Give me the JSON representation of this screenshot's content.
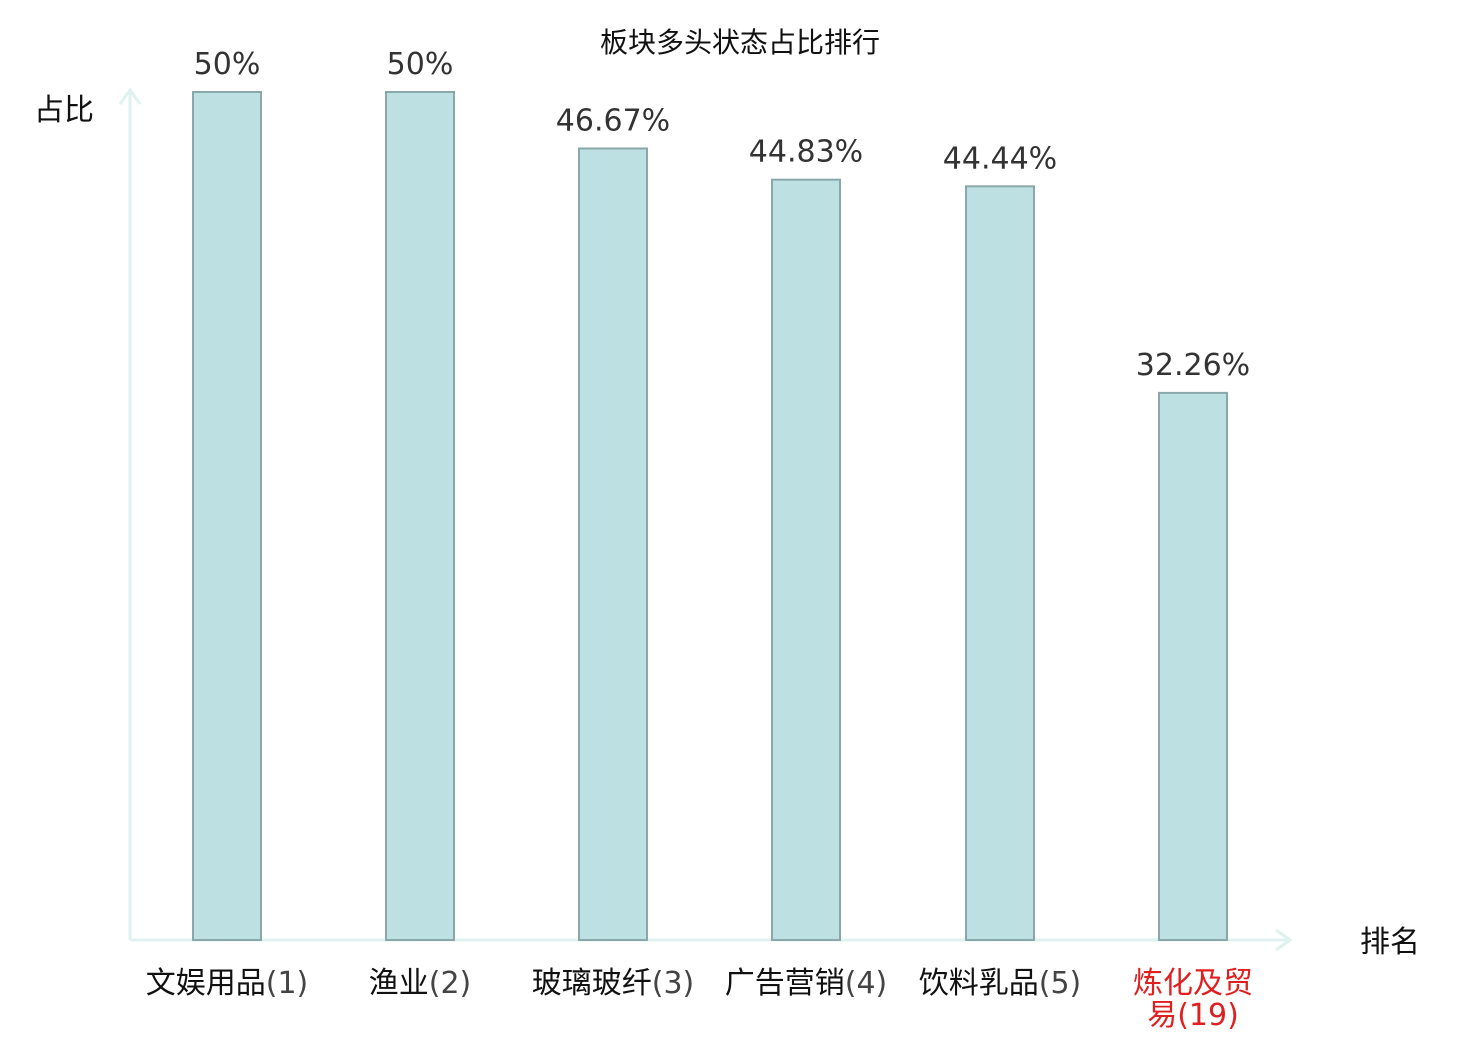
{
  "chart_data": {
    "type": "bar",
    "title": "板块多头状态占比排行",
    "ylabel": "占比",
    "xlabel": "排名",
    "categories": [
      {
        "name": "文娱用品",
        "rank": "(1)",
        "highlight": false
      },
      {
        "name": "渔业",
        "rank": "(2)",
        "highlight": false
      },
      {
        "name": "玻璃玻纤",
        "rank": "(3)",
        "highlight": false
      },
      {
        "name": "广告营销",
        "rank": "(4)",
        "highlight": false
      },
      {
        "name": "饮料乳品",
        "rank": "(5)",
        "highlight": false
      },
      {
        "name": "炼化及贸易",
        "name_lines": [
          "炼化及贸",
          "易"
        ],
        "rank": "(19)",
        "highlight": true
      }
    ],
    "values": [
      50,
      50,
      46.67,
      44.83,
      44.44,
      32.26
    ],
    "value_labels": [
      "50%",
      "50%",
      "46.67%",
      "44.83%",
      "44.44%",
      "32.26%"
    ],
    "ylim": [
      0,
      50
    ],
    "grid": false,
    "colors": {
      "bar_fill": "#bde0e3",
      "bar_stroke": "#8aa8aa",
      "axis": "#dff2ef",
      "highlight_text": "#e02020"
    }
  }
}
